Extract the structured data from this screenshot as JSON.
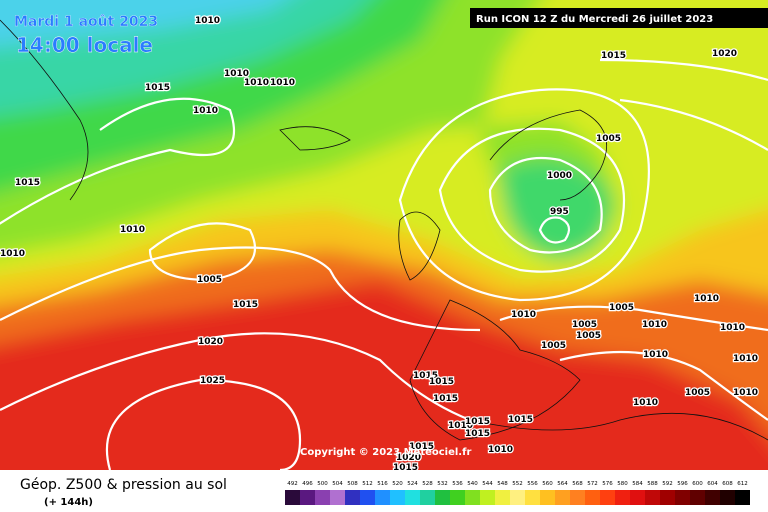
{
  "header": {
    "date": "Mardi 1 août 2023",
    "time": "14:00 locale",
    "run": "Run ICON 12 Z du Mercredi 26 juillet 2023"
  },
  "copyright": "Copyright © 2023 Meteociel.fr",
  "footer": {
    "title": "Géop. Z500 & pression au sol",
    "range": "(+ 144h)"
  },
  "scale": {
    "labels": [
      "492",
      "496",
      "500",
      "504",
      "508",
      "512",
      "516",
      "520",
      "524",
      "528",
      "532",
      "536",
      "540",
      "544",
      "548",
      "552",
      "556",
      "560",
      "564",
      "568",
      "572",
      "576",
      "580",
      "584",
      "588",
      "592",
      "596",
      "600",
      "604",
      "608",
      "612"
    ]
  },
  "isobars": {
    "labels": [
      "1010",
      "1015",
      "1010",
      "1010",
      "1010",
      "1010",
      "1015",
      "1010",
      "1010",
      "1005",
      "1015",
      "1020",
      "1025",
      "1015",
      "1020",
      "1005",
      "1000",
      "995",
      "1005",
      "1010",
      "1005",
      "1005",
      "1010",
      "1010",
      "1010",
      "1005",
      "1010",
      "1010",
      "1015",
      "1015",
      "1015",
      "1005",
      "1010",
      "1010",
      "1015",
      "1010",
      "1015",
      "1015",
      "1010",
      "1015",
      "1020",
      "1015"
    ]
  }
}
